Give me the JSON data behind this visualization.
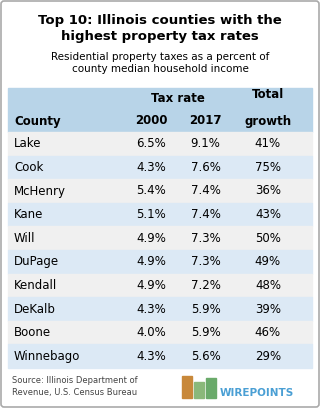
{
  "title_bold": "Top 10: Illinois counties with the\nhighest property tax rates",
  "subtitle": "Residential property taxes as a percent of\ncounty median household income",
  "col_subheader": "Tax rate",
  "counties": [
    "Lake",
    "Cook",
    "McHenry",
    "Kane",
    "Will",
    "DuPage",
    "Kendall",
    "DeKalb",
    "Boone",
    "Winnebago"
  ],
  "rate_2000": [
    "6.5%",
    "4.3%",
    "5.4%",
    "5.1%",
    "4.9%",
    "4.9%",
    "4.9%",
    "4.3%",
    "4.0%",
    "4.3%"
  ],
  "rate_2017": [
    "9.1%",
    "7.6%",
    "7.4%",
    "7.4%",
    "7.3%",
    "7.3%",
    "7.2%",
    "5.9%",
    "5.9%",
    "5.6%"
  ],
  "total_growth": [
    "41%",
    "75%",
    "36%",
    "43%",
    "50%",
    "49%",
    "48%",
    "39%",
    "46%",
    "29%"
  ],
  "header_bg": "#b8d4e8",
  "row_bg_odd": "#f0f0f0",
  "row_bg_even": "#dce9f5",
  "outer_bg": "#ffffff",
  "text_color": "#000000",
  "source_text": "Source: Illinois Department of\nRevenue, U.S. Census Bureau",
  "wirepoints_text": "WIREPOINTS",
  "title_fontsize": 9.5,
  "subtitle_fontsize": 7.5,
  "table_fontsize": 8.5,
  "header_fontsize": 8.5
}
